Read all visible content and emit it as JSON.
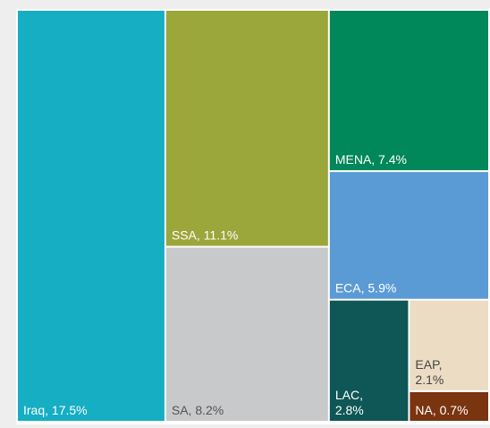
{
  "chart_data": {
    "type": "treemap",
    "values": [
      17.5,
      11.1,
      8.2,
      7.4,
      5.9,
      2.8,
      2.1,
      0.7
    ],
    "value_labels": [
      "Iraq, 17.5%",
      "SSA, 11.1%",
      "SA, 8.2%",
      "MENA, 7.4%",
      "ECA, 5.9%",
      "LAC, 2.8%",
      "EAP, 2.1%",
      "NA, 0.7%"
    ],
    "colors": [
      "#15aec3",
      "#9ba63b",
      "#c8c9cb",
      "#00875a",
      "#5b9bd5",
      "#0f5757",
      "#ecdcc4",
      "#7a3410"
    ],
    "text_colors": [
      "#ffffff",
      "#ffffff",
      "#555555",
      "#ffffff",
      "#ffffff",
      "#ffffff",
      "#444444",
      "#ffffff"
    ]
  }
}
